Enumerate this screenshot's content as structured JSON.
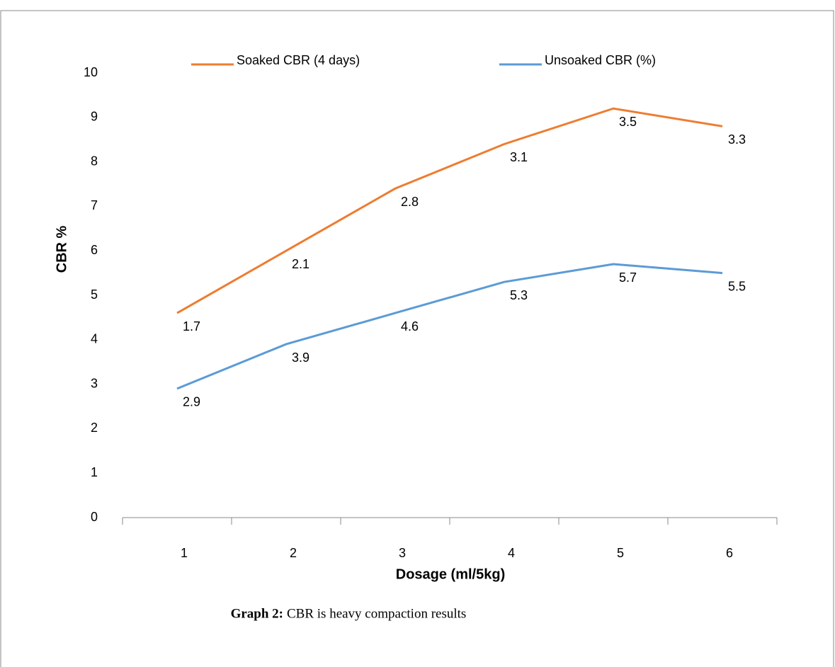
{
  "chart_data": {
    "type": "line",
    "stacked": true,
    "x_label": "Dosage (ml/5kg)",
    "y_label": "CBR %",
    "caption_label": "Graph 2:",
    "caption": "CBR is heavy compaction results",
    "categories": [
      1,
      2,
      3,
      4,
      5,
      6
    ],
    "series": [
      {
        "name": "Unsoaked CBR (%)",
        "color": "#5b9bd5",
        "values": [
          2.9,
          3.9,
          4.6,
          5.3,
          5.7,
          5.5
        ]
      },
      {
        "name": "Soaked CBR (4 days)",
        "color": "#ed7d31",
        "values": [
          1.7,
          2.1,
          2.8,
          3.1,
          3.5,
          3.3
        ]
      }
    ],
    "ylim": [
      0,
      10
    ],
    "yticks": [
      0,
      1,
      2,
      3,
      4,
      5,
      6,
      7,
      8,
      9,
      10
    ],
    "grid": false
  }
}
